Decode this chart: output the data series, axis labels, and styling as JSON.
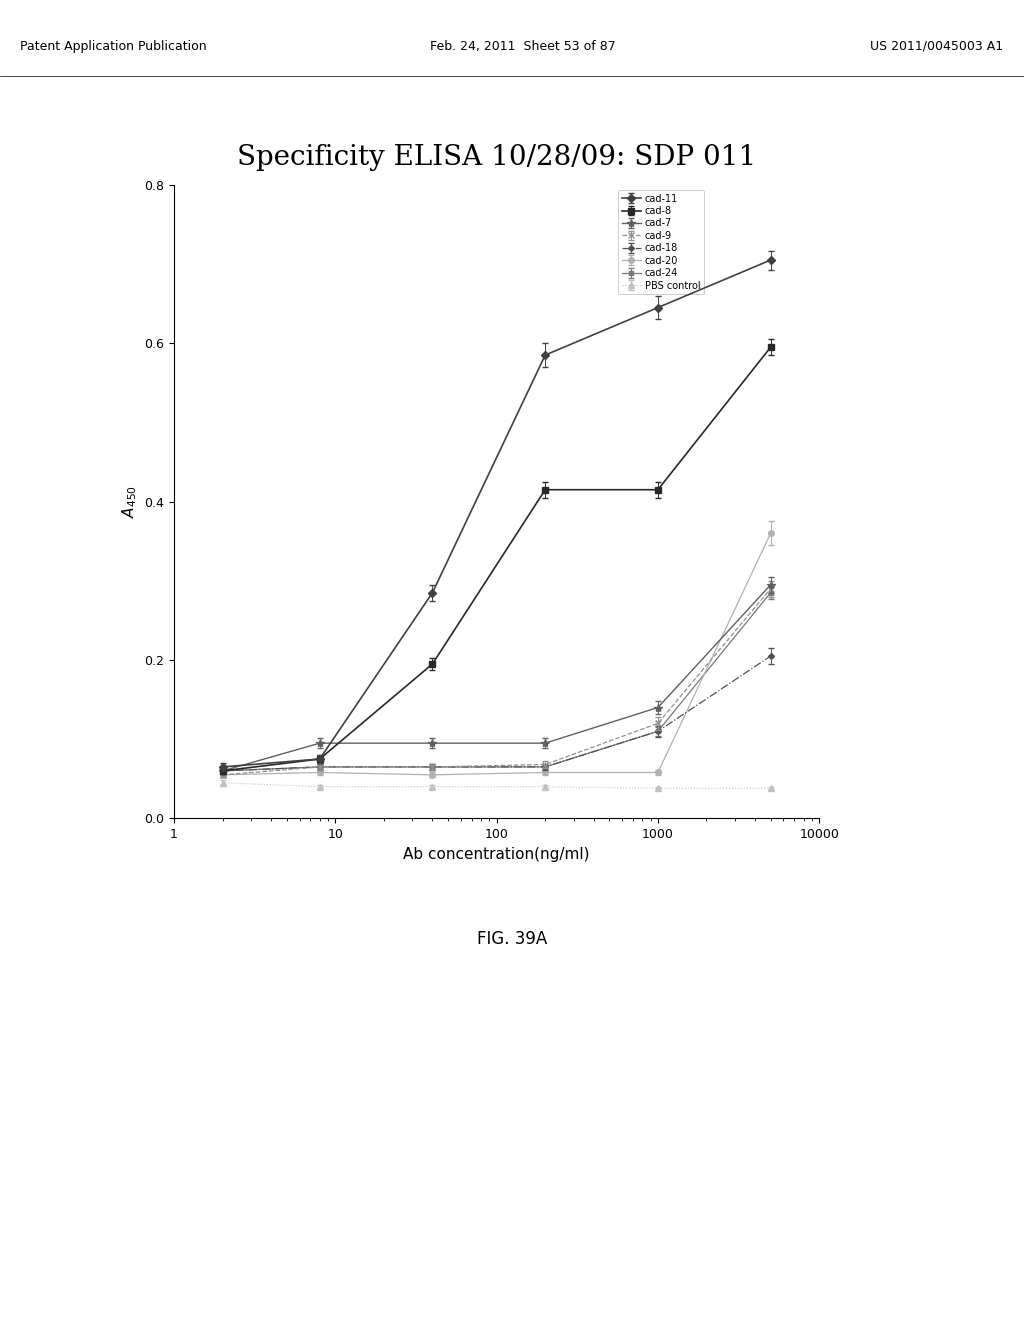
{
  "title": "Specificity ELISA 10/28/09: SDP 011",
  "xlabel": "Ab concentration(ng/ml)",
  "ylabel": "A_{450}",
  "x_values": [
    2,
    8,
    40,
    200,
    1000,
    5000
  ],
  "series": {
    "cad-11": {
      "y": [
        0.065,
        0.075,
        0.285,
        0.585,
        0.645,
        0.705
      ],
      "yerr": [
        0.005,
        0.005,
        0.01,
        0.015,
        0.015,
        0.012
      ],
      "color": "#404040",
      "linestyle": "-",
      "marker": "D",
      "markersize": 4,
      "linewidth": 1.2,
      "zorder": 10
    },
    "cad-8": {
      "y": [
        0.06,
        0.075,
        0.195,
        0.415,
        0.415,
        0.595
      ],
      "yerr": [
        0.004,
        0.005,
        0.008,
        0.01,
        0.01,
        0.01
      ],
      "color": "#282828",
      "linestyle": "-",
      "marker": "s",
      "markersize": 4,
      "linewidth": 1.2,
      "zorder": 9
    },
    "cad-7": {
      "y": [
        0.06,
        0.095,
        0.095,
        0.095,
        0.14,
        0.295
      ],
      "yerr": [
        0.004,
        0.006,
        0.006,
        0.006,
        0.008,
        0.01
      ],
      "color": "#606060",
      "linestyle": "-",
      "marker": "*",
      "markersize": 6,
      "linewidth": 1.0,
      "zorder": 8
    },
    "cad-9": {
      "y": [
        0.055,
        0.065,
        0.065,
        0.068,
        0.12,
        0.29
      ],
      "yerr": [
        0.003,
        0.004,
        0.004,
        0.004,
        0.008,
        0.01
      ],
      "color": "#909090",
      "linestyle": "--",
      "marker": "x",
      "markersize": 5,
      "linewidth": 0.9,
      "zorder": 7
    },
    "cad-18": {
      "y": [
        0.06,
        0.065,
        0.065,
        0.065,
        0.11,
        0.205
      ],
      "yerr": [
        0.003,
        0.004,
        0.004,
        0.004,
        0.007,
        0.01
      ],
      "color": "#505050",
      "linestyle": "-.",
      "marker": "D",
      "markersize": 3,
      "linewidth": 0.9,
      "zorder": 6
    },
    "cad-20": {
      "y": [
        0.055,
        0.058,
        0.055,
        0.058,
        0.058,
        0.36
      ],
      "yerr": [
        0.003,
        0.003,
        0.003,
        0.003,
        0.003,
        0.015
      ],
      "color": "#b0b0b0",
      "linestyle": "-",
      "marker": "o",
      "markersize": 4,
      "linewidth": 0.9,
      "zorder": 5
    },
    "cad-24": {
      "y": [
        0.06,
        0.065,
        0.065,
        0.065,
        0.11,
        0.285
      ],
      "yerr": [
        0.003,
        0.003,
        0.004,
        0.003,
        0.006,
        0.008
      ],
      "color": "#787878",
      "linestyle": "-",
      "marker": "s",
      "markersize": 3,
      "linewidth": 0.9,
      "zorder": 4
    },
    "PBS control": {
      "y": [
        0.045,
        0.04,
        0.04,
        0.04,
        0.038,
        0.038
      ],
      "yerr": [
        0.003,
        0.002,
        0.002,
        0.002,
        0.002,
        0.002
      ],
      "color": "#c0c0c0",
      "linestyle": ":",
      "marker": "^",
      "markersize": 4,
      "linewidth": 0.8,
      "zorder": 3
    }
  },
  "ylim": [
    0.0,
    0.8
  ],
  "yticks": [
    0.0,
    0.2,
    0.4,
    0.6,
    0.8
  ],
  "xlim": [
    1,
    10000
  ],
  "background_color": "#ffffff",
  "title_fontsize": 20,
  "label_fontsize": 11,
  "tick_fontsize": 9,
  "legend_fontsize": 7,
  "fig_caption": "FIG. 39A",
  "header_left": "Patent Application Publication",
  "header_center": "Feb. 24, 2011  Sheet 53 of 87",
  "header_right": "US 2011/0045003 A1"
}
